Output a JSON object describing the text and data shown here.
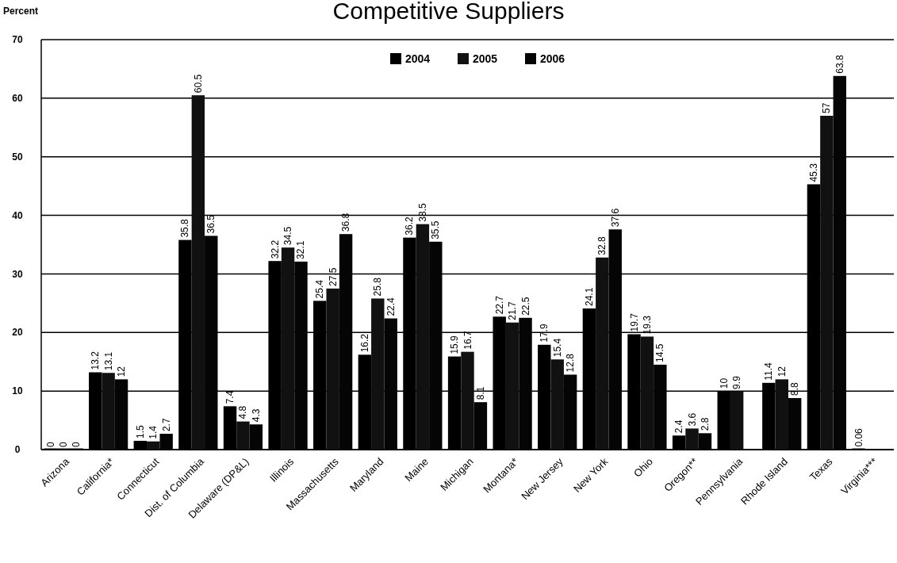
{
  "chart_data": {
    "type": "bar",
    "title": "Competitive Suppliers",
    "ylabel": "Percent",
    "categories": [
      "Arizona",
      "California*",
      "Connecticut",
      "Dist. of Columbia",
      "Delaware (DP&L)",
      "Illinois",
      "Massachusetts",
      "Maryland",
      "Maine",
      "Michigan",
      "Montana*",
      "New Jersey",
      "New York",
      "Ohio",
      "Oregon**",
      "Pennsylvania",
      "Rhode Island",
      "Texas",
      "Virginia***"
    ],
    "series": [
      {
        "name": "2004",
        "color": "#000000",
        "values": [
          0,
          13.2,
          1.5,
          35.8,
          7.4,
          32.2,
          25.4,
          16.2,
          36.2,
          15.9,
          22.7,
          17.9,
          24.1,
          19.7,
          2.4,
          10,
          11.4,
          45.3,
          0.06
        ]
      },
      {
        "name": "2005",
        "color": "#111111",
        "values": [
          0,
          13.1,
          1.4,
          60.5,
          4.8,
          34.5,
          27.5,
          25.8,
          38.5,
          16.7,
          21.7,
          15.4,
          32.8,
          19.3,
          3.6,
          9.9,
          12,
          57,
          null
        ]
      },
      {
        "name": "2006",
        "color": "#050505",
        "values": [
          0,
          12,
          2.7,
          36.5,
          4.3,
          32.1,
          36.8,
          22.4,
          35.5,
          8.1,
          22.5,
          12.8,
          37.6,
          14.5,
          2.8,
          null,
          8.8,
          63.8,
          null
        ]
      }
    ],
    "ylim": [
      0,
      70
    ],
    "yticks": [
      0,
      10,
      20,
      30,
      40,
      50,
      60,
      70
    ],
    "grid": "y",
    "legend": "top",
    "data_labels": true
  }
}
